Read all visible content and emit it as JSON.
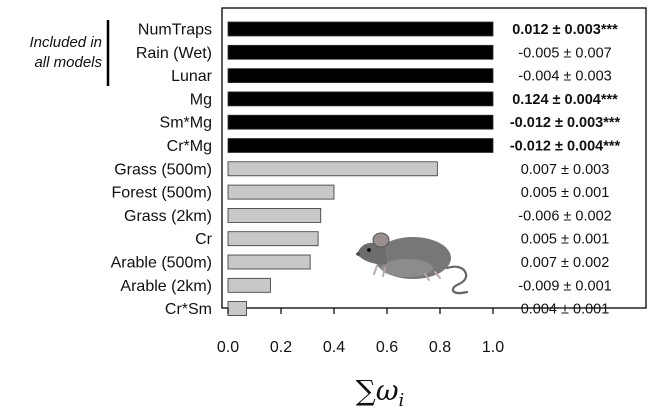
{
  "chart_data": {
    "type": "bar",
    "orientation": "horizontal",
    "bracket_label": [
      "Included in",
      "all models"
    ],
    "bracket_count": 3,
    "categories": [
      "NumTraps",
      "Rain (Wet)",
      "Lunar",
      "Mg",
      "Sm*Mg",
      "Cr*Mg",
      "Grass (500m)",
      "Forest (500m)",
      "Grass (2km)",
      "Cr",
      "Arable (500m)",
      "Arable (2km)",
      "Cr*Sm"
    ],
    "values": [
      1.0,
      1.0,
      1.0,
      1.0,
      1.0,
      1.0,
      0.79,
      0.4,
      0.35,
      0.34,
      0.31,
      0.16,
      0.07
    ],
    "estimates": [
      "0.012 ± 0.003***",
      "-0.005 ± 0.007",
      "-0.004 ± 0.003",
      "0.124 ± 0.004***",
      "-0.012 ± 0.003***",
      "-0.012 ± 0.004***",
      "0.007 ± 0.003",
      "0.005 ± 0.001",
      "-0.006 ± 0.002",
      "0.005 ± 0.001",
      "0.007 ± 0.002",
      "-0.009 ± 0.001",
      "0.004 ± 0.001"
    ],
    "significant": [
      true,
      false,
      false,
      true,
      true,
      true,
      false,
      false,
      false,
      false,
      false,
      false,
      false
    ],
    "bar_colors": [
      "#000000",
      "#000000",
      "#000000",
      "#000000",
      "#000000",
      "#000000",
      "#c8c8c8",
      "#c8c8c8",
      "#c8c8c8",
      "#c8c8c8",
      "#c8c8c8",
      "#c8c8c8",
      "#c8c8c8"
    ],
    "xlim": [
      0.0,
      1.0
    ],
    "xticks": [
      "0.0",
      "0.2",
      "0.4",
      "0.6",
      "0.8",
      "1.0"
    ],
    "xlabel": "∑ω",
    "xlabel_subscript": "i",
    "title": "",
    "ylabel": ""
  }
}
